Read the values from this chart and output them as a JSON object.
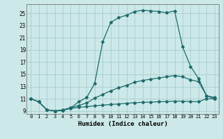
{
  "xlabel": "Humidex (Indice chaleur)",
  "bg_color": "#cce8e8",
  "grid_color": "#aacccc",
  "line_color": "#1e6b6b",
  "xlim": [
    -0.5,
    23.5
  ],
  "ylim": [
    8.5,
    26.5
  ],
  "yticks": [
    9,
    11,
    13,
    15,
    17,
    19,
    21,
    23,
    25
  ],
  "xticks": [
    0,
    1,
    2,
    3,
    4,
    5,
    6,
    7,
    8,
    9,
    10,
    11,
    12,
    13,
    14,
    15,
    16,
    17,
    18,
    19,
    20,
    21,
    22,
    23
  ],
  "line1_x": [
    0,
    1,
    2,
    3,
    4,
    5,
    6,
    7,
    8,
    9,
    10,
    11,
    12,
    13,
    14,
    15,
    16,
    17,
    18,
    19,
    20,
    21,
    22,
    23
  ],
  "line1_y": [
    11,
    10.5,
    9.2,
    9.0,
    9.1,
    9.5,
    10.5,
    11.2,
    13.5,
    20.3,
    23.5,
    24.3,
    24.7,
    25.3,
    25.5,
    25.4,
    25.3,
    25.1,
    25.4,
    19.5,
    16.3,
    14.3,
    11.5,
    11.2
  ],
  "line2_x": [
    0,
    1,
    2,
    3,
    4,
    5,
    6,
    7,
    8,
    9,
    10,
    11,
    12,
    13,
    14,
    15,
    16,
    17,
    18,
    19,
    20,
    21,
    22,
    23
  ],
  "line2_y": [
    11,
    10.5,
    9.2,
    9.0,
    9.2,
    9.5,
    9.9,
    10.3,
    11.1,
    11.7,
    12.3,
    12.8,
    13.2,
    13.7,
    14.0,
    14.2,
    14.4,
    14.6,
    14.8,
    14.6,
    14.1,
    13.8,
    11.5,
    11.0
  ],
  "line3_x": [
    0,
    1,
    2,
    3,
    4,
    5,
    6,
    7,
    8,
    9,
    10,
    11,
    12,
    13,
    14,
    15,
    16,
    17,
    18,
    19,
    20,
    21,
    22,
    23
  ],
  "line3_y": [
    11,
    10.5,
    9.2,
    9.0,
    9.1,
    9.4,
    9.6,
    9.7,
    9.85,
    9.95,
    10.05,
    10.15,
    10.25,
    10.35,
    10.4,
    10.45,
    10.5,
    10.55,
    10.6,
    10.6,
    10.55,
    10.5,
    11.0,
    11.0
  ]
}
